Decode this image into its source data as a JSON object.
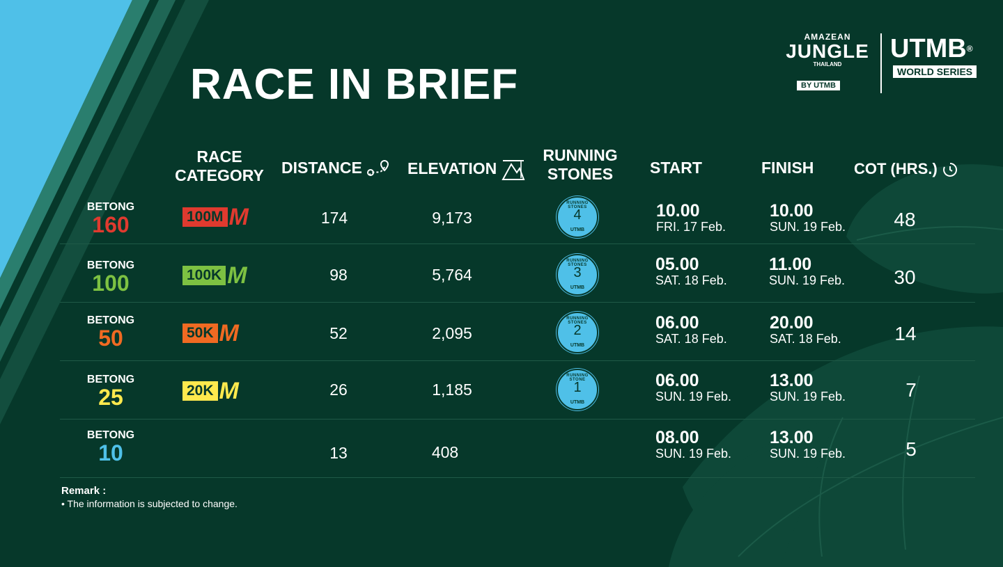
{
  "colors": {
    "background": "#06382a",
    "stripe_light": "#4fc0e8",
    "red": "#e03a2f",
    "green": "#7dc142",
    "orange": "#f06a22",
    "yellow": "#ffe94d",
    "blue": "#4fc0e8"
  },
  "title": "RACE IN BRIEF",
  "logo": {
    "amazean": "AMAZEAN",
    "jungle": "JUNGLE",
    "thailand": "THAILAND",
    "by_utmb": "BY  UTMB",
    "utmb": "UTMB",
    "registered": "®",
    "world_series": "WORLD SERIES"
  },
  "headers": {
    "race_category_1": "RACE",
    "race_category_2": "CATEGORY",
    "distance": "DISTANCE",
    "elevation": "ELEVATION",
    "running_stones_1": "RUNNING",
    "running_stones_2": "STONES",
    "start": "START",
    "finish": "FINISH",
    "cot": "COT (HRS.)"
  },
  "rows": [
    {
      "name": "BETONG",
      "number": "160",
      "badge": "100M",
      "badge_m": "M",
      "distance": "174",
      "elevation": "9,173",
      "stones": "4",
      "stones_label": "RUNNING STONES",
      "stones_utmb": "UTMB",
      "start_time": "10.00",
      "start_date": "FRI. 17 Feb.",
      "finish_time": "10.00",
      "finish_date": "SUN. 19 Feb.",
      "cot": "48"
    },
    {
      "name": "BETONG",
      "number": "100",
      "badge": "100K",
      "badge_m": "M",
      "distance": "98",
      "elevation": "5,764",
      "stones": "3",
      "stones_label": "RUNNING STONES",
      "stones_utmb": "UTMB",
      "start_time": "05.00",
      "start_date": "SAT. 18 Feb.",
      "finish_time": "11.00",
      "finish_date": "SUN. 19 Feb.",
      "cot": "30"
    },
    {
      "name": "BETONG",
      "number": "50",
      "badge": "50K",
      "badge_m": "M",
      "distance": "52",
      "elevation": "2,095",
      "stones": "2",
      "stones_label": "RUNNING STONES",
      "stones_utmb": "UTMB",
      "start_time": "06.00",
      "start_date": "SAT. 18 Feb.",
      "finish_time": "20.00",
      "finish_date": "SAT. 18 Feb.",
      "cot": "14"
    },
    {
      "name": "BETONG",
      "number": "25",
      "badge": "20K",
      "badge_m": "M",
      "distance": "26",
      "elevation": "1,185",
      "stones": "1",
      "stones_label": "RUNNING STONE",
      "stones_utmb": "UTMB",
      "start_time": "06.00",
      "start_date": "SUN. 19 Feb.",
      "finish_time": "13.00",
      "finish_date": "SUN. 19 Feb.",
      "cot": "7"
    },
    {
      "name": "BETONG",
      "number": "10",
      "distance": "13",
      "elevation": "408",
      "start_time": "08.00",
      "start_date": "SUN. 19 Feb.",
      "finish_time": "13.00",
      "finish_date": "SUN. 19 Feb.",
      "cot": "5"
    }
  ],
  "remark": {
    "title": "Remark :",
    "text": "• The information is subjected to change."
  }
}
